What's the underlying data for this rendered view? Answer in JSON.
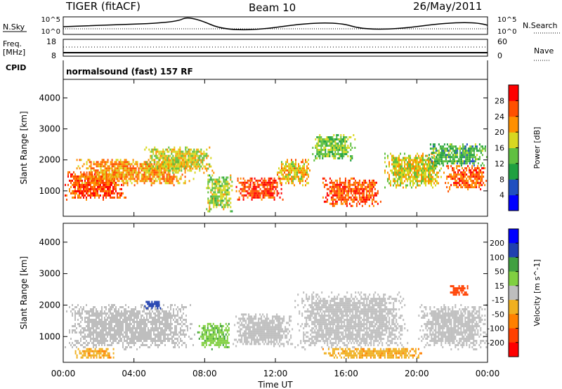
{
  "header": {
    "radar": "TIGER (fitACF)",
    "beam": "Beam 10",
    "date": "26/May/2011"
  },
  "top_panels": {
    "nsky_label": "N.Sky",
    "nsky_ticks": [
      "10^5",
      "10^0"
    ],
    "nsearch_label": "N.Search",
    "nsearch_ticks": [
      "10^5",
      "10^0"
    ],
    "freq_label": "Freq.",
    "freq_unit": "[MHz]",
    "freq_ticks": [
      "18",
      "8"
    ],
    "nave_label": "Nave",
    "nave_ticks": [
      "60",
      "0"
    ],
    "cpid_label": "CPID",
    "cpid_value": "normalsound (fast) 157 RF"
  },
  "chart_data": [
    {
      "type": "heatmap",
      "title": "",
      "xlabel": "Time UT",
      "ylabel": "Slant Range [km]",
      "x_ticks": [
        "00:00",
        "04:00",
        "08:00",
        "12:00",
        "16:00",
        "20:00",
        "00:00"
      ],
      "y_ticks": [
        1000,
        2000,
        3000,
        4000
      ],
      "xlim_hours": [
        0,
        24
      ],
      "ylim_km": [
        180,
        4600
      ],
      "colorbar_label": "Power [dB]",
      "colorbar_ticks": [
        4,
        8,
        12,
        16,
        20,
        24,
        28
      ],
      "colorbar_colors": [
        "#0000ff",
        "#2050c0",
        "#20a040",
        "#60c040",
        "#d8d820",
        "#ff9000",
        "#ff5000",
        "#ff0000"
      ],
      "bands": [
        {
          "t0": 0.0,
          "t1": 3.5,
          "r0": 700,
          "r1": 1700,
          "level": 26
        },
        {
          "t0": 0.5,
          "t1": 7.5,
          "r0": 1200,
          "r1": 2100,
          "level": 22
        },
        {
          "t0": 4.5,
          "t1": 8.5,
          "r0": 1600,
          "r1": 2500,
          "level": 18
        },
        {
          "t0": 8.0,
          "t1": 9.6,
          "r0": 300,
          "r1": 1600,
          "level": 16
        },
        {
          "t0": 9.6,
          "t1": 12.4,
          "r0": 700,
          "r1": 1500,
          "level": 27
        },
        {
          "t0": 12.0,
          "t1": 14.0,
          "r0": 1200,
          "r1": 2100,
          "level": 20
        },
        {
          "t0": 14.5,
          "t1": 18.0,
          "r0": 500,
          "r1": 1500,
          "level": 26
        },
        {
          "t0": 14.0,
          "t1": 16.5,
          "r0": 2000,
          "r1": 2900,
          "level": 14
        },
        {
          "t0": 18.0,
          "t1": 21.5,
          "r0": 1100,
          "r1": 2300,
          "level": 18
        },
        {
          "t0": 21.5,
          "t1": 24.0,
          "r0": 1000,
          "r1": 1900,
          "level": 25
        },
        {
          "t0": 20.5,
          "t1": 24.0,
          "r0": 1800,
          "r1": 2600,
          "level": 12
        }
      ]
    },
    {
      "type": "heatmap",
      "title": "",
      "xlabel": "Time UT",
      "ylabel": "Slant Range [km]",
      "x_ticks": [
        "00:00",
        "04:00",
        "08:00",
        "12:00",
        "16:00",
        "20:00",
        "00:00"
      ],
      "y_ticks": [
        1000,
        2000,
        3000,
        4000
      ],
      "xlim_hours": [
        0,
        24
      ],
      "ylim_km": [
        180,
        4600
      ],
      "colorbar_label": "Velocity [m s^-1]",
      "colorbar_ticks": [
        200,
        100,
        50,
        15,
        -15,
        -50,
        -100,
        -200
      ],
      "colorbar_colors": [
        "#0000ff",
        "#2040b0",
        "#40a040",
        "#80d040",
        "#bebebe",
        "#f0b020",
        "#ff8000",
        "#ff4000",
        "#ff0000"
      ],
      "bands": [
        {
          "t0": 0.0,
          "t1": 7.5,
          "r0": 600,
          "r1": 2100,
          "level": 0
        },
        {
          "t0": 0.5,
          "t1": 3.0,
          "r0": 300,
          "r1": 700,
          "level": -40
        },
        {
          "t0": 7.5,
          "t1": 9.5,
          "r0": 600,
          "r1": 1500,
          "level": 40
        },
        {
          "t0": 9.5,
          "t1": 13.0,
          "r0": 700,
          "r1": 1800,
          "level": 0
        },
        {
          "t0": 13.0,
          "t1": 19.5,
          "r0": 600,
          "r1": 2500,
          "level": 0
        },
        {
          "t0": 14.5,
          "t1": 20.5,
          "r0": 300,
          "r1": 700,
          "level": -40
        },
        {
          "t0": 20.0,
          "t1": 24.0,
          "r0": 600,
          "r1": 2100,
          "level": 0
        },
        {
          "t0": 21.8,
          "t1": 23.0,
          "r0": 2300,
          "r1": 2700,
          "level": -150
        },
        {
          "t0": 4.5,
          "t1": 5.5,
          "r0": 1900,
          "r1": 2200,
          "level": 150
        }
      ]
    }
  ]
}
